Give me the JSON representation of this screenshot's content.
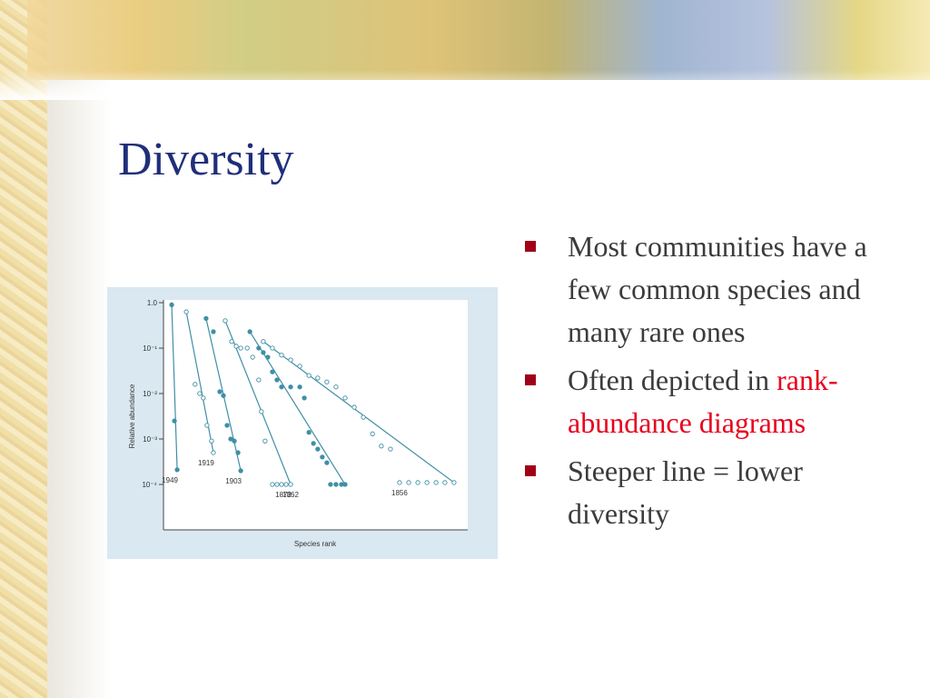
{
  "title": "Diversity",
  "bullets": [
    {
      "parts": [
        "Most communities have a few common species and many rare ones"
      ]
    },
    {
      "parts": [
        "Often depicted in ",
        "rank-abundance diagrams"
      ]
    },
    {
      "parts": [
        "Steeper line = lower diversity"
      ]
    }
  ],
  "figure": {
    "type": "scatter",
    "xlabel": "Species rank",
    "ylabel": "Relative abundance",
    "log_y": true,
    "xlim": [
      0,
      100
    ],
    "ylim": [
      1e-05,
      1.15
    ],
    "yticks": [
      {
        "value": 1,
        "label": "1.0"
      },
      {
        "value": 0.1,
        "label": "10⁻¹"
      },
      {
        "value": 0.01,
        "label": "10⁻²"
      },
      {
        "value": 0.001,
        "label": "10⁻³"
      },
      {
        "value": 0.0001,
        "label": "10⁻⁴"
      }
    ],
    "color": "#3f8fa6",
    "series": [
      {
        "name": "1949",
        "filled": true,
        "x": [
          2.7,
          3.6,
          4.5
        ],
        "values": [
          0.9,
          0.0025,
          0.00021
        ]
      },
      {
        "name": "1919",
        "filled": false,
        "x": [
          7.5,
          10.4,
          11.9,
          13.1,
          14.3,
          15.8,
          16.4
        ],
        "values": [
          0.63,
          0.016,
          0.01,
          0.008,
          0.002,
          0.0009,
          0.0005
        ]
      },
      {
        "name": "1903",
        "filled": true,
        "x": [
          14,
          16.4,
          18.5,
          19.7,
          20.9,
          22.1,
          23.3,
          24.5,
          25.4
        ],
        "values": [
          0.45,
          0.23,
          0.011,
          0.009,
          0.002,
          0.001,
          0.0009,
          0.0005,
          0.0002
        ]
      },
      {
        "name": "1872",
        "filled": false,
        "x": [
          20.3,
          22.4,
          23.9,
          25.4,
          27.5,
          29.3,
          31.3,
          32.2,
          33.4,
          35.8,
          37.3,
          38.8,
          40.3,
          41.8
        ],
        "values": [
          0.4,
          0.14,
          0.11,
          0.1,
          0.1,
          0.063,
          0.02,
          0.004,
          0.0009,
          0.0001,
          0.0001,
          0.0001,
          0.0001,
          0.0001
        ]
      },
      {
        "name": "1862",
        "filled": true,
        "x": [
          28.4,
          31.3,
          32.8,
          34.3,
          35.8,
          37.3,
          38.8,
          41.8,
          44.8,
          46.3,
          47.8,
          49.3,
          50.7,
          52.2,
          53.7,
          54.9,
          56.7,
          58.5,
          59.7
        ],
        "values": [
          0.23,
          0.1,
          0.08,
          0.063,
          0.03,
          0.02,
          0.014,
          0.014,
          0.014,
          0.008,
          0.0014,
          0.0008,
          0.0006,
          0.0004,
          0.0003,
          0.0001,
          0.0001,
          0.0001,
          0.0001
        ]
      },
      {
        "name": "1856",
        "filled": false,
        "x": [
          32.8,
          35.8,
          38.8,
          41.8,
          44.8,
          47.8,
          50.7,
          53.7,
          56.7,
          59.7,
          62.7,
          65.7,
          68.7,
          71.6,
          74.6,
          77.6,
          80.6,
          83.6,
          86.6,
          89.6,
          92.5,
          95.5
        ],
        "values": [
          0.14,
          0.1,
          0.07,
          0.055,
          0.04,
          0.025,
          0.022,
          0.018,
          0.014,
          0.008,
          0.005,
          0.003,
          0.0013,
          0.0007,
          0.0006,
          0.00011,
          0.00011,
          0.00011,
          0.00011,
          0.00011,
          0.00011,
          0.00011
        ]
      }
    ]
  }
}
